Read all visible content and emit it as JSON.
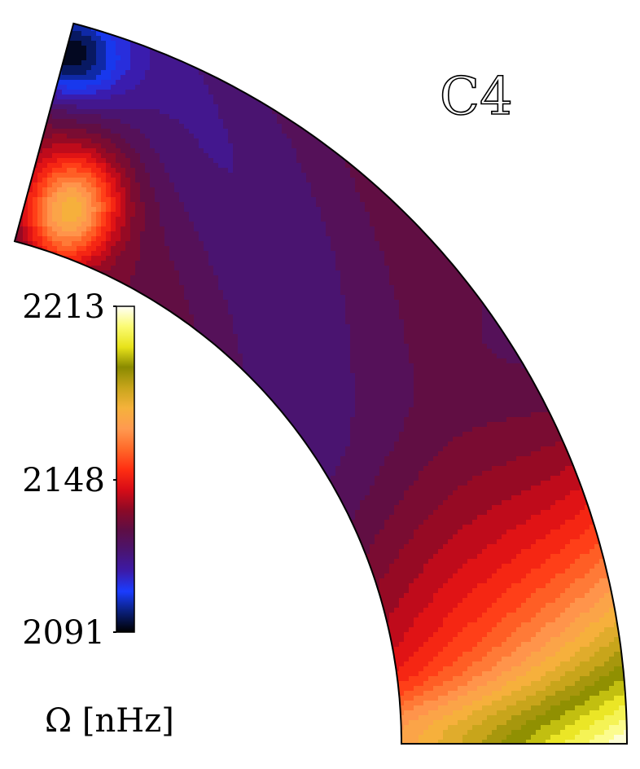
{
  "chart_data": {
    "type": "heatmap",
    "subtype": "meridional-quarter-annulus-contour",
    "title": "C4",
    "colorbar": {
      "label": "Ω [nHz]",
      "min": 2091,
      "max": 2213,
      "ticks": [
        2213,
        2148,
        2091
      ],
      "tick_labels": [
        "2213",
        "2148",
        "2091"
      ],
      "colormap": [
        "#000000",
        "#0a1f7a",
        "#1a3cff",
        "#3c1aa8",
        "#4a1470",
        "#5e0e45",
        "#8c0a26",
        "#d80c16",
        "#ff2f12",
        "#ff6a2a",
        "#ff9a50",
        "#f5b23b",
        "#c8a51b",
        "#8a8a00",
        "#e8e31a",
        "#fbfb73",
        "#fffff8"
      ]
    },
    "contour_levels": 30,
    "colors": {
      "outline": "#000000",
      "background": "#ffffff"
    }
  }
}
